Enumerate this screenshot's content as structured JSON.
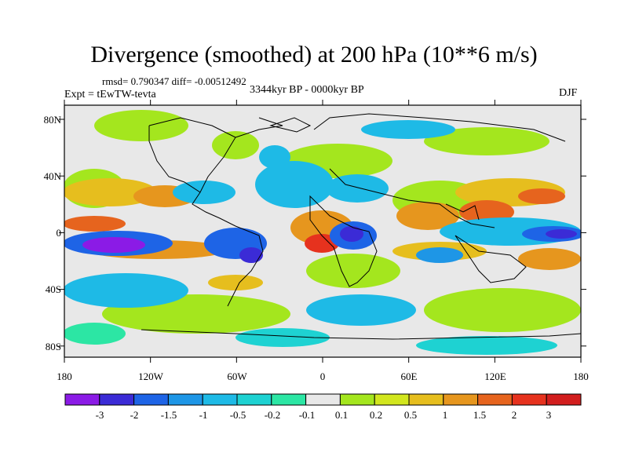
{
  "title": "Divergence (smoothed) at 200 hPa (10**6 m/s)",
  "stats_line": "rmsd= 0.790347 diff= -0.00512492",
  "periods_line": "3344kyr BP - 0000kyr BP",
  "experiment": "Expt = tEwTW-tevta",
  "season": "DJF",
  "lat_labels": [
    "80N",
    "40N",
    "0",
    "40S",
    "80S"
  ],
  "lon_labels": [
    "180",
    "120W",
    "60W",
    "0",
    "60E",
    "120E",
    "180"
  ],
  "colorbar": {
    "labels": [
      "-3",
      "-2",
      "-1.5",
      "-1",
      "-0.5",
      "-0.2",
      "-0.1",
      "0.1",
      "0.2",
      "0.5",
      "1",
      "1.5",
      "2",
      "3"
    ],
    "colors": [
      "#8b1be6",
      "#3b2bd6",
      "#1e64e6",
      "#1e96e6",
      "#1ebae6",
      "#1ed2d2",
      "#2ce6a4",
      "#e8e8e8",
      "#a4e61e",
      "#d2e61e",
      "#e6be1e",
      "#e6961e",
      "#e6641e",
      "#e6321e",
      "#d21e1e"
    ]
  },
  "map": {
    "background": "#e8e8e8",
    "coast_color": "#000000"
  }
}
